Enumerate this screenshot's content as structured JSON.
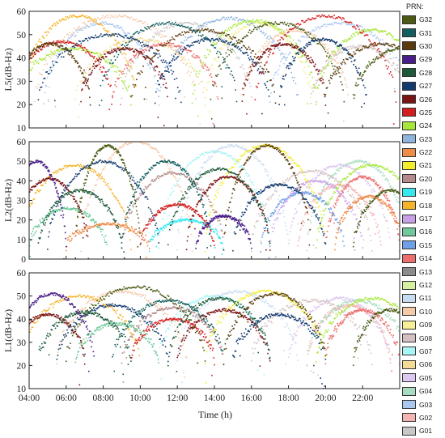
{
  "chart_data": {
    "type": "scatter",
    "legend_title": "PRN:",
    "legend_placement": "right",
    "satellites": [
      {
        "name": "G32",
        "color": "#4a5a14"
      },
      {
        "name": "G31",
        "color": "#135e5e"
      },
      {
        "name": "G30",
        "color": "#5a3c0c"
      },
      {
        "name": "G29",
        "color": "#4b1d8a"
      },
      {
        "name": "G28",
        "color": "#1d5a3a"
      },
      {
        "name": "G27",
        "color": "#123a6e"
      },
      {
        "name": "G26",
        "color": "#7a1414"
      },
      {
        "name": "G25",
        "color": "#d41e1e"
      },
      {
        "name": "G24",
        "color": "#a8e83a"
      },
      {
        "name": "G23",
        "color": "#8fb4dc"
      },
      {
        "name": "G22",
        "color": "#ef8c4a"
      },
      {
        "name": "G21",
        "color": "#f2ee2a"
      },
      {
        "name": "G20",
        "color": "#b48a8a"
      },
      {
        "name": "G19",
        "color": "#36e8ee"
      },
      {
        "name": "G18",
        "color": "#f5b42a"
      },
      {
        "name": "G17",
        "color": "#c8a0e8"
      },
      {
        "name": "G16",
        "color": "#6ec89a"
      },
      {
        "name": "G15",
        "color": "#6ea0e8"
      },
      {
        "name": "G14",
        "color": "#ee6e6e"
      },
      {
        "name": "G13",
        "color": "#8c8c8c"
      },
      {
        "name": "G12",
        "color": "#d4f0a0"
      },
      {
        "name": "G11",
        "color": "#c8dcf0"
      },
      {
        "name": "G10",
        "color": "#f5c8a8"
      },
      {
        "name": "G09",
        "color": "#f5f096"
      },
      {
        "name": "G08",
        "color": "#d4c0c0"
      },
      {
        "name": "G07",
        "color": "#a8f5f5"
      },
      {
        "name": "G06",
        "color": "#f5dc96"
      },
      {
        "name": "G05",
        "color": "#dcc8f0"
      },
      {
        "name": "G04",
        "color": "#a8dcc0"
      },
      {
        "name": "G03",
        "color": "#a8c8f0"
      },
      {
        "name": "G02",
        "color": "#f5b4b4"
      },
      {
        "name": "G01",
        "color": "#c8c8c8"
      }
    ],
    "xlabel": "Time (h)",
    "xlim": [
      4,
      24
    ],
    "xticks": [
      "04:00",
      "06:00",
      "08:00",
      "10:00",
      "12:00",
      "14:00",
      "16:00",
      "18:00",
      "20:00",
      "22:00"
    ],
    "panels": [
      {
        "ylabel": "L5(dB-Hz)",
        "ylim": [
          10,
          60
        ],
        "yticks": [
          "10",
          "20",
          "30",
          "40",
          "50",
          "60"
        ],
        "arcs": [
          {
            "sat": "G24",
            "t0": 3.2,
            "t1": 9.5,
            "peak": 44
          },
          {
            "sat": "G10",
            "t0": 4.3,
            "t1": 13.0,
            "peak": 58
          },
          {
            "sat": "G18",
            "t0": 3.5,
            "t1": 9.8,
            "peak": 58
          },
          {
            "sat": "G03",
            "t0": 4.8,
            "t1": 11.0,
            "peak": 55
          },
          {
            "sat": "G30",
            "t0": 3.0,
            "t1": 7.3,
            "peak": 46
          },
          {
            "sat": "G25",
            "t0": 3.0,
            "t1": 8.5,
            "peak": 47
          },
          {
            "sat": "G27",
            "t0": 4.5,
            "t1": 12.2,
            "peak": 50
          },
          {
            "sat": "G06",
            "t0": 6.5,
            "t1": 13.5,
            "peak": 48
          },
          {
            "sat": "G26",
            "t0": 6.8,
            "t1": 11.5,
            "peak": 44
          },
          {
            "sat": "G31",
            "t0": 7.8,
            "t1": 15.2,
            "peak": 55
          },
          {
            "sat": "G01",
            "t0": 9.0,
            "t1": 16.0,
            "peak": 55
          },
          {
            "sat": "G14",
            "t0": 8.5,
            "t1": 14.2,
            "peak": 46
          },
          {
            "sat": "G30",
            "t0": 9.5,
            "t1": 17.3,
            "peak": 52
          },
          {
            "sat": "G27",
            "t0": 10.8,
            "t1": 17.0,
            "peak": 48
          },
          {
            "sat": "G23",
            "t0": 11.0,
            "t1": 18.5,
            "peak": 57
          },
          {
            "sat": "G24",
            "t0": 12.8,
            "t1": 19.5,
            "peak": 56
          },
          {
            "sat": "G09",
            "t0": 13.5,
            "t1": 19.2,
            "peak": 55
          },
          {
            "sat": "G32",
            "t0": 13.8,
            "t1": 21.0,
            "peak": 55
          },
          {
            "sat": "G10",
            "t0": 15.5,
            "t1": 21.2,
            "peak": 52
          },
          {
            "sat": "G25",
            "t0": 16.2,
            "t1": 23.8,
            "peak": 58
          },
          {
            "sat": "G26",
            "t0": 15.5,
            "t1": 20.0,
            "peak": 46
          },
          {
            "sat": "G27",
            "t0": 17.5,
            "t1": 22.2,
            "peak": 48
          },
          {
            "sat": "G03",
            "t0": 17.0,
            "t1": 24.6,
            "peak": 55
          },
          {
            "sat": "G24",
            "t0": 19.5,
            "t1": 25.5,
            "peak": 52
          },
          {
            "sat": "G08",
            "t0": 19.2,
            "t1": 24.5,
            "peak": 45
          },
          {
            "sat": "G30",
            "t0": 20.0,
            "t1": 26.0,
            "peak": 46
          },
          {
            "sat": "G32",
            "t0": 21.5,
            "t1": 26.5,
            "peak": 44
          }
        ]
      },
      {
        "ylabel": "L2(dB-Hz)",
        "ylim": [
          0,
          60
        ],
        "yticks": [
          "0",
          "10",
          "20",
          "30",
          "40",
          "50",
          "60"
        ],
        "arcs": [
          {
            "sat": "G29",
            "t0": 2.8,
            "t1": 6.0,
            "peak": 50
          },
          {
            "sat": "G26",
            "t0": 3.0,
            "t1": 7.2,
            "peak": 41
          },
          {
            "sat": "G18",
            "t0": 3.5,
            "t1": 9.5,
            "peak": 48
          },
          {
            "sat": "G28",
            "t0": 4.5,
            "t1": 9.0,
            "peak": 35
          },
          {
            "sat": "G16",
            "t0": 4.0,
            "t1": 8.2,
            "peak": 26
          },
          {
            "sat": "G27",
            "t0": 5.0,
            "t1": 11.0,
            "peak": 50
          },
          {
            "sat": "G32",
            "t0": 6.5,
            "t1": 10.0,
            "peak": 58
          },
          {
            "sat": "G10",
            "t0": 6.8,
            "t1": 12.8,
            "peak": 60
          },
          {
            "sat": "G22",
            "t0": 6.0,
            "t1": 10.5,
            "peak": 18
          },
          {
            "sat": "G31",
            "t0": 9.0,
            "t1": 13.8,
            "peak": 50
          },
          {
            "sat": "G20",
            "t0": 9.0,
            "t1": 14.5,
            "peak": 44
          },
          {
            "sat": "G25",
            "t0": 10.0,
            "t1": 14.0,
            "peak": 28
          },
          {
            "sat": "G28",
            "t0": 11.5,
            "t1": 17.0,
            "peak": 46
          },
          {
            "sat": "G26",
            "t0": 12.5,
            "t1": 17.0,
            "peak": 42
          },
          {
            "sat": "G29",
            "t0": 13.0,
            "t1": 16.0,
            "peak": 22
          },
          {
            "sat": "G19",
            "t0": 10.5,
            "t1": 14.5,
            "peak": 20
          },
          {
            "sat": "G07",
            "t0": 11.0,
            "t1": 17.0,
            "peak": 55
          },
          {
            "sat": "G11",
            "t0": 12.0,
            "t1": 18.0,
            "peak": 58
          },
          {
            "sat": "G21",
            "t0": 13.5,
            "t1": 20.0,
            "peak": 58
          },
          {
            "sat": "G30",
            "t0": 14.5,
            "t1": 19.2,
            "peak": 58
          },
          {
            "sat": "G27",
            "t0": 15.0,
            "t1": 20.0,
            "peak": 38
          },
          {
            "sat": "G15",
            "t0": 16.5,
            "t1": 21.0,
            "peak": 34
          },
          {
            "sat": "G08",
            "t0": 16.0,
            "t1": 22.5,
            "peak": 45
          },
          {
            "sat": "G17",
            "t0": 17.0,
            "t1": 22.0,
            "peak": 40
          },
          {
            "sat": "G05",
            "t0": 18.0,
            "t1": 23.5,
            "peak": 48
          },
          {
            "sat": "G04",
            "t0": 19.0,
            "t1": 24.5,
            "peak": 50
          },
          {
            "sat": "G24",
            "t0": 19.5,
            "t1": 25.5,
            "peak": 48
          },
          {
            "sat": "G02",
            "t0": 18.5,
            "t1": 23.0,
            "peak": 38
          },
          {
            "sat": "G14",
            "t0": 20.0,
            "t1": 24.0,
            "peak": 42
          },
          {
            "sat": "G22",
            "t0": 20.5,
            "t1": 24.2,
            "peak": 32
          },
          {
            "sat": "G32",
            "t0": 21.5,
            "t1": 25.5,
            "peak": 35
          }
        ]
      },
      {
        "ylabel": "L1(dB-Hz)",
        "ylim": [
          10,
          60
        ],
        "yticks": [
          "10",
          "20",
          "30",
          "40",
          "50",
          "60"
        ],
        "arcs": [
          {
            "sat": "G29",
            "t0": 3.0,
            "t1": 7.5,
            "peak": 51
          },
          {
            "sat": "G26",
            "t0": 3.0,
            "t1": 7.0,
            "peak": 42
          },
          {
            "sat": "G18",
            "t0": 3.5,
            "t1": 10.0,
            "peak": 50
          },
          {
            "sat": "G28",
            "t0": 4.5,
            "t1": 9.5,
            "peak": 43
          },
          {
            "sat": "G10",
            "t0": 5.5,
            "t1": 12.5,
            "peak": 52
          },
          {
            "sat": "G27",
            "t0": 5.5,
            "t1": 11.5,
            "peak": 46
          },
          {
            "sat": "G32",
            "t0": 6.0,
            "t1": 13.5,
            "peak": 54
          },
          {
            "sat": "G16",
            "t0": 6.5,
            "t1": 11.0,
            "peak": 38
          },
          {
            "sat": "G31",
            "t0": 8.5,
            "t1": 14.5,
            "peak": 48
          },
          {
            "sat": "G20",
            "t0": 9.0,
            "t1": 14.5,
            "peak": 45
          },
          {
            "sat": "G25",
            "t0": 9.5,
            "t1": 14.0,
            "peak": 40
          },
          {
            "sat": "G28",
            "t0": 11.5,
            "t1": 17.0,
            "peak": 49
          },
          {
            "sat": "G26",
            "t0": 12.0,
            "t1": 17.0,
            "peak": 44
          },
          {
            "sat": "G07",
            "t0": 11.0,
            "t1": 17.0,
            "peak": 50
          },
          {
            "sat": "G11",
            "t0": 12.0,
            "t1": 18.5,
            "peak": 52
          },
          {
            "sat": "G21",
            "t0": 13.5,
            "t1": 20.0,
            "peak": 52
          },
          {
            "sat": "G30",
            "t0": 14.5,
            "t1": 20.0,
            "peak": 51
          },
          {
            "sat": "G27",
            "t0": 15.0,
            "t1": 20.0,
            "peak": 42
          },
          {
            "sat": "G08",
            "t0": 16.0,
            "t1": 22.5,
            "peak": 48
          },
          {
            "sat": "G05",
            "t0": 18.0,
            "t1": 23.5,
            "peak": 49
          },
          {
            "sat": "G04",
            "t0": 19.0,
            "t1": 24.5,
            "peak": 48
          },
          {
            "sat": "G24",
            "t0": 19.5,
            "t1": 25.5,
            "peak": 49
          },
          {
            "sat": "G14",
            "t0": 20.0,
            "t1": 24.0,
            "peak": 44
          },
          {
            "sat": "G02",
            "t0": 19.0,
            "t1": 23.5,
            "peak": 46
          },
          {
            "sat": "G32",
            "t0": 21.5,
            "t1": 25.5,
            "peak": 44
          }
        ]
      }
    ]
  }
}
